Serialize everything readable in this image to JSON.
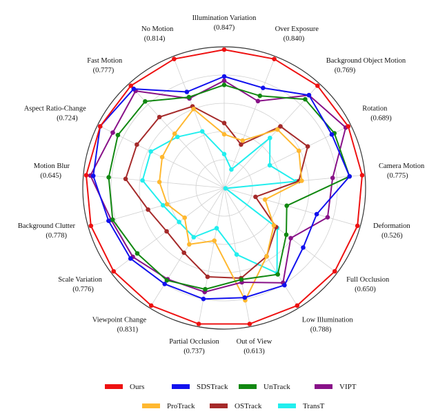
{
  "chart_data": {
    "type": "radar",
    "rlim": [
      0,
      1
    ],
    "grid": true,
    "legend_position": "bottom",
    "categories": [
      {
        "name": "Illumination Variation",
        "best": "(0.847)"
      },
      {
        "name": "Over Exposure",
        "best": "(0.840)"
      },
      {
        "name": "Background Object Motion",
        "best": "(0.769)"
      },
      {
        "name": "Rotation",
        "best": "(0.689)"
      },
      {
        "name": "Camera Motion",
        "best": "(0.775)"
      },
      {
        "name": "Deformation",
        "best": "(0.526)"
      },
      {
        "name": "Full Occlusion",
        "best": "(0.650)"
      },
      {
        "name": "Low Illumination",
        "best": "(0.788)"
      },
      {
        "name": "Out of View",
        "best": "(0.613)"
      },
      {
        "name": "Partial Occlusion",
        "best": "(0.737)"
      },
      {
        "name": "Viewpoint Change",
        "best": "(0.831)"
      },
      {
        "name": "Scale Variation",
        "best": "(0.776)"
      },
      {
        "name": "Background Clutter",
        "best": "(0.778)"
      },
      {
        "name": "Motion Blur",
        "best": "(0.645)"
      },
      {
        "name": "Aspect Ratio-Change",
        "best": "(0.724)"
      },
      {
        "name": "Fast Motion",
        "best": "(0.777)"
      },
      {
        "name": "No Motion",
        "best": "(0.814)"
      }
    ],
    "series": [
      {
        "name": "Ours",
        "color": "#ee1111",
        "values": [
          0.98,
          0.98,
          0.98,
          0.98,
          0.98,
          0.98,
          0.98,
          0.98,
          0.98,
          0.98,
          0.98,
          0.98,
          0.98,
          0.98,
          0.98,
          0.98,
          0.98
        ]
      },
      {
        "name": "SDSTrack",
        "color": "#1111ee",
        "values": [
          0.79,
          0.76,
          0.89,
          0.85,
          0.89,
          0.68,
          0.7,
          0.81,
          0.79,
          0.8,
          0.8,
          0.83,
          0.85,
          0.93,
          0.98,
          0.95,
          0.73
        ]
      },
      {
        "name": "UnTrack",
        "color": "#118811",
        "values": [
          0.73,
          0.7,
          0.85,
          0.87,
          0.89,
          0.46,
          0.55,
          0.72,
          0.66,
          0.73,
          0.77,
          0.77,
          0.82,
          0.82,
          0.84,
          0.83,
          0.69
        ]
      },
      {
        "name": "VIPT",
        "color": "#881188",
        "values": [
          0.76,
          0.66,
          0.89,
          0.96,
          0.77,
          0.76,
          0.59,
          0.79,
          0.68,
          0.75,
          0.76,
          0.81,
          0.83,
          0.95,
          0.88,
          0.93,
          0.68
        ]
      },
      {
        "name": "ProTrack",
        "color": "#ffb830",
        "values": [
          0.38,
          0.36,
          0.56,
          0.59,
          0.55,
          0.3,
          0.44,
          0.57,
          0.81,
          0.38,
          0.47,
          0.35,
          0.42,
          0.46,
          0.49,
          0.52,
          0.6
        ]
      },
      {
        "name": "OSTrack",
        "color": "#a52a2a",
        "values": [
          0.46,
          0.33,
          0.59,
          0.66,
          0.53,
          0.23,
          0.46,
          0.57,
          0.65,
          0.64,
          0.54,
          0.51,
          0.56,
          0.7,
          0.69,
          0.68,
          0.62
        ]
      },
      {
        "name": "TransT",
        "color": "#22eeee",
        "values": [
          0.24,
          0.14,
          0.48,
          0.36,
          0.51,
          0.01,
          0.47,
          0.71,
          0.48,
          0.29,
          0.41,
          0.4,
          0.45,
          0.58,
          0.58,
          0.49,
          0.43
        ]
      }
    ]
  }
}
